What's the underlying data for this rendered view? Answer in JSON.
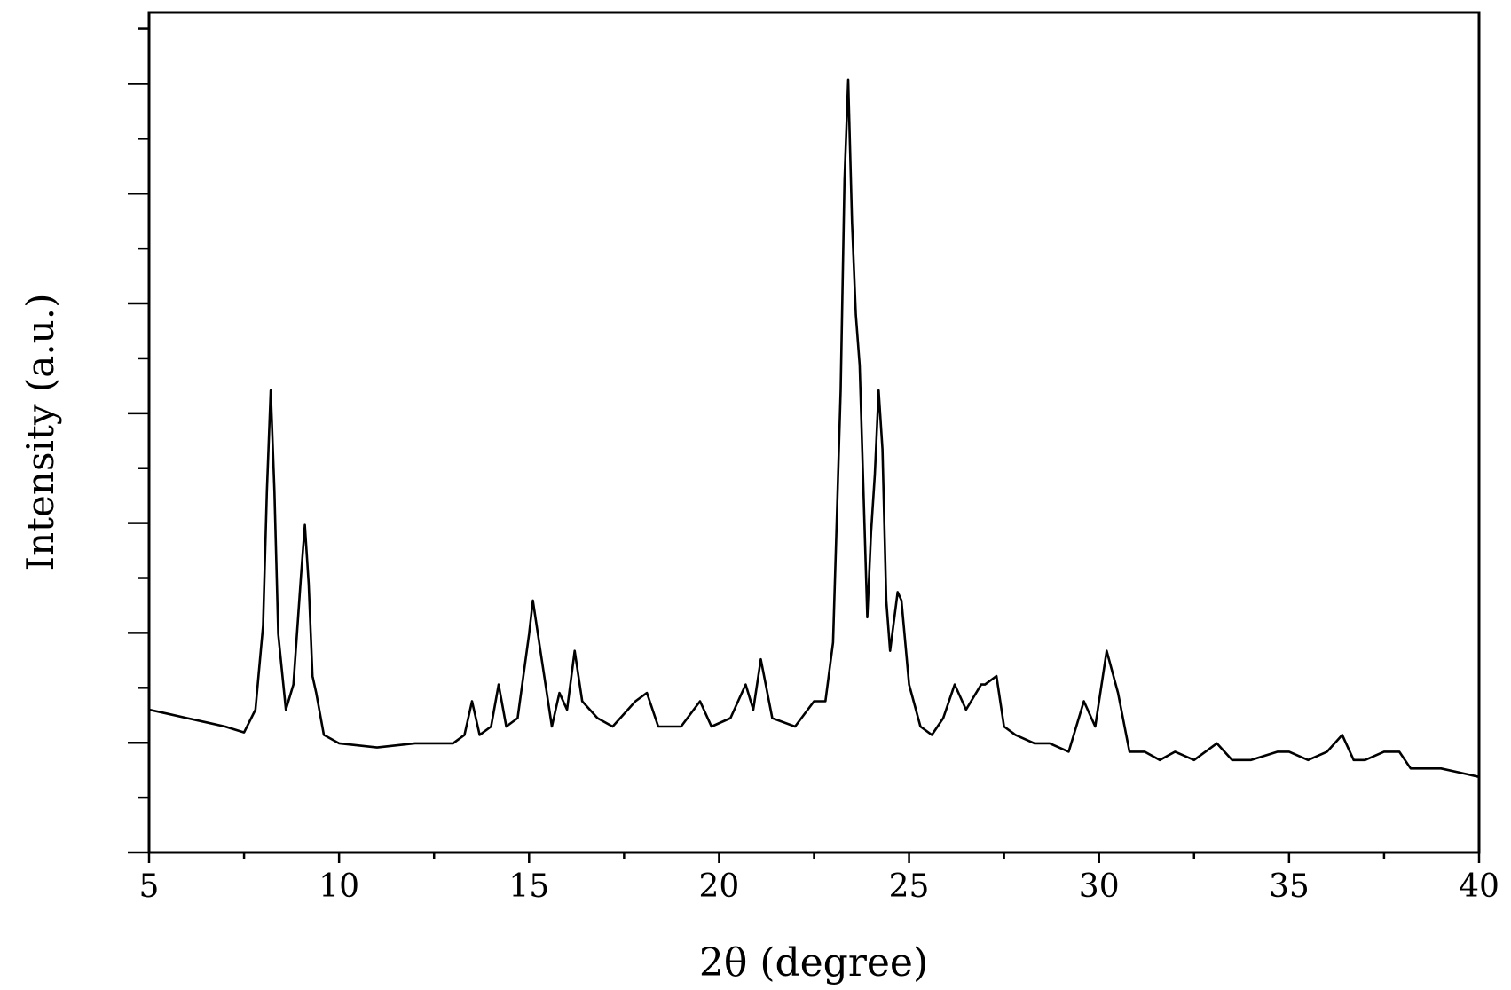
{
  "chart_data": {
    "type": "line",
    "title": "",
    "xlabel": "2θ (degree)",
    "ylabel": "Intensity (a.u.)",
    "xlim": [
      5,
      40
    ],
    "ylim": [
      0,
      100
    ],
    "x_major_ticks": [
      5,
      10,
      15,
      20,
      25,
      30,
      35,
      40
    ],
    "x_tick_labels": [
      "5",
      "10",
      "15",
      "20",
      "25",
      "30",
      "35",
      "40"
    ],
    "y_tick_labels_shown": false,
    "grid": false,
    "legend": "none",
    "line_color": "#000000",
    "series": [
      {
        "x": [
          5.0,
          5.5,
          6.0,
          6.5,
          7.0,
          7.5,
          7.8,
          8.0,
          8.1,
          8.2,
          8.3,
          8.4,
          8.6,
          8.8,
          9.0,
          9.1,
          9.2,
          9.3,
          9.4,
          9.6,
          10.0,
          11.0,
          12.0,
          13.0,
          13.3,
          13.5,
          13.7,
          14.0,
          14.2,
          14.4,
          14.7,
          15.0,
          15.1,
          15.3,
          15.6,
          15.8,
          16.0,
          16.2,
          16.4,
          16.8,
          17.2,
          17.8,
          18.1,
          18.4,
          19.0,
          19.5,
          19.8,
          20.3,
          20.7,
          20.9,
          21.1,
          21.4,
          22.0,
          22.5,
          22.8,
          23.0,
          23.2,
          23.3,
          23.4,
          23.5,
          23.6,
          23.7,
          23.9,
          24.0,
          24.1,
          24.2,
          24.3,
          24.4,
          24.5,
          24.7,
          24.8,
          25.0,
          25.3,
          25.6,
          25.9,
          26.2,
          26.5,
          26.9,
          27.0,
          27.3,
          27.5,
          27.8,
          28.3,
          28.7,
          29.2,
          29.6,
          29.9,
          30.2,
          30.5,
          30.8,
          31.2,
          31.6,
          32.0,
          32.5,
          33.1,
          33.5,
          34.0,
          34.7,
          35.0,
          35.5,
          36.0,
          36.4,
          36.7,
          37.0,
          37.5,
          37.9,
          38.2,
          38.6,
          39.0,
          39.5,
          40.0
        ],
        "y": [
          17,
          16.5,
          16,
          15.5,
          15,
          14.3,
          17,
          27,
          43,
          55,
          43,
          26,
          17,
          20,
          33,
          39,
          32,
          21,
          19,
          14,
          13,
          12.5,
          13,
          13,
          14,
          18,
          14,
          15,
          20,
          15,
          16,
          26,
          30,
          24,
          15,
          19,
          17,
          24,
          18,
          16,
          15,
          18,
          19,
          15,
          15,
          18,
          15,
          16,
          20,
          17,
          23,
          16,
          15,
          18,
          18,
          25,
          55,
          80,
          92,
          75,
          64,
          58,
          28,
          38,
          45,
          55,
          48,
          30,
          24,
          31,
          30,
          20,
          15,
          14,
          16,
          20,
          17,
          20,
          20,
          21,
          15,
          14,
          13,
          13,
          12,
          18,
          15,
          24,
          19,
          12,
          12,
          11,
          12,
          11,
          13,
          11,
          11,
          12,
          12,
          11,
          12,
          14,
          11,
          11,
          12,
          12,
          10,
          10,
          10,
          9.5,
          9
        ]
      }
    ]
  }
}
